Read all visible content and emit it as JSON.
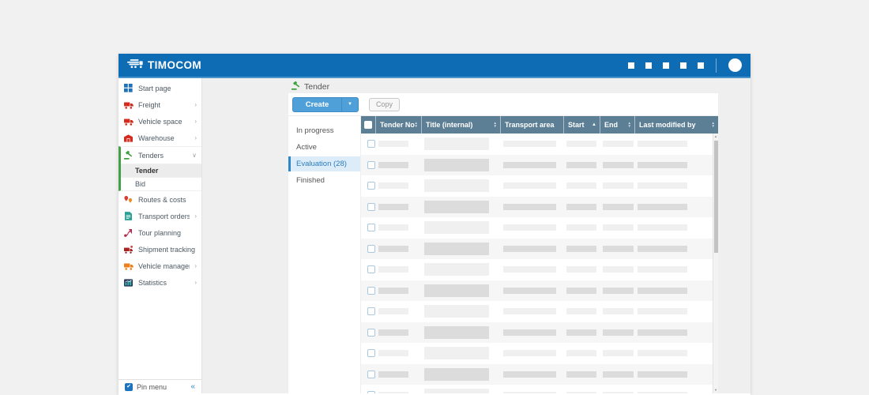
{
  "header": {
    "logo_text": "TIMOCOM",
    "icon_placeholder_count": 5
  },
  "sidebar": {
    "items": [
      {
        "label": "Start page",
        "icon": "grid-icon",
        "color": "#1f72b8",
        "chevron": ""
      },
      {
        "label": "Freight",
        "icon": "truck-icon",
        "color": "#d52b1e",
        "chevron": "›"
      },
      {
        "label": "Vehicle space",
        "icon": "truck-icon",
        "color": "#d52b1e",
        "chevron": "›"
      },
      {
        "label": "Warehouse",
        "icon": "warehouse-icon",
        "color": "#d52b1e",
        "chevron": "›"
      },
      {
        "label": "Tenders",
        "icon": "gavel-icon",
        "color": "#3fa13f",
        "chevron": "∨",
        "expanded": true,
        "children": [
          {
            "label": "Tender",
            "selected": true
          },
          {
            "label": "Bid",
            "selected": false
          }
        ]
      },
      {
        "label": "Routes & costs",
        "icon": "map-pins-icon",
        "color": "#d93a32",
        "chevron": ""
      },
      {
        "label": "Transport orders",
        "icon": "document-icon",
        "color": "#2ba196",
        "chevron": "›"
      },
      {
        "label": "Tour planning",
        "icon": "route-icon",
        "color": "#b5294b",
        "chevron": ""
      },
      {
        "label": "Shipment tracking",
        "icon": "tracking-truck-icon",
        "color": "#a82222",
        "chevron": ""
      },
      {
        "label": "Vehicle management",
        "icon": "truck-icon",
        "color": "#ef7d1a",
        "chevron": "›"
      },
      {
        "label": "Statistics",
        "icon": "chart-icon",
        "color": "#2ba196",
        "chevron": "›"
      }
    ],
    "pin_menu": {
      "label": "Pin menu",
      "checked": true,
      "collapse_icon": "«"
    }
  },
  "page": {
    "title": "Tender"
  },
  "toolbar": {
    "create_label": "Create",
    "copy_label": "Copy"
  },
  "tabs": [
    {
      "label": "In progress",
      "selected": false
    },
    {
      "label": "Active",
      "selected": false
    },
    {
      "label": "Evaluation (28)",
      "selected": true
    },
    {
      "label": "Finished",
      "selected": false
    }
  ],
  "table": {
    "columns": [
      {
        "label": "",
        "type": "checkbox",
        "sort": "none"
      },
      {
        "label": "Tender No.",
        "sort": "both"
      },
      {
        "label": "Title (internal)",
        "sort": "both"
      },
      {
        "label": "Transport area",
        "sort": "none"
      },
      {
        "label": "Start",
        "sort": "asc"
      },
      {
        "label": "End",
        "sort": "both"
      },
      {
        "label": "Last modified by",
        "sort": "both"
      }
    ],
    "row_count": 13
  },
  "colors": {
    "header_blue": "#0e6cb4",
    "table_header": "#5c7f95",
    "accent_blue": "#2f86c8",
    "create_button": "#4f9fd9",
    "tenders_green": "#43a047",
    "selected_tab_bg": "#dcedf9"
  }
}
